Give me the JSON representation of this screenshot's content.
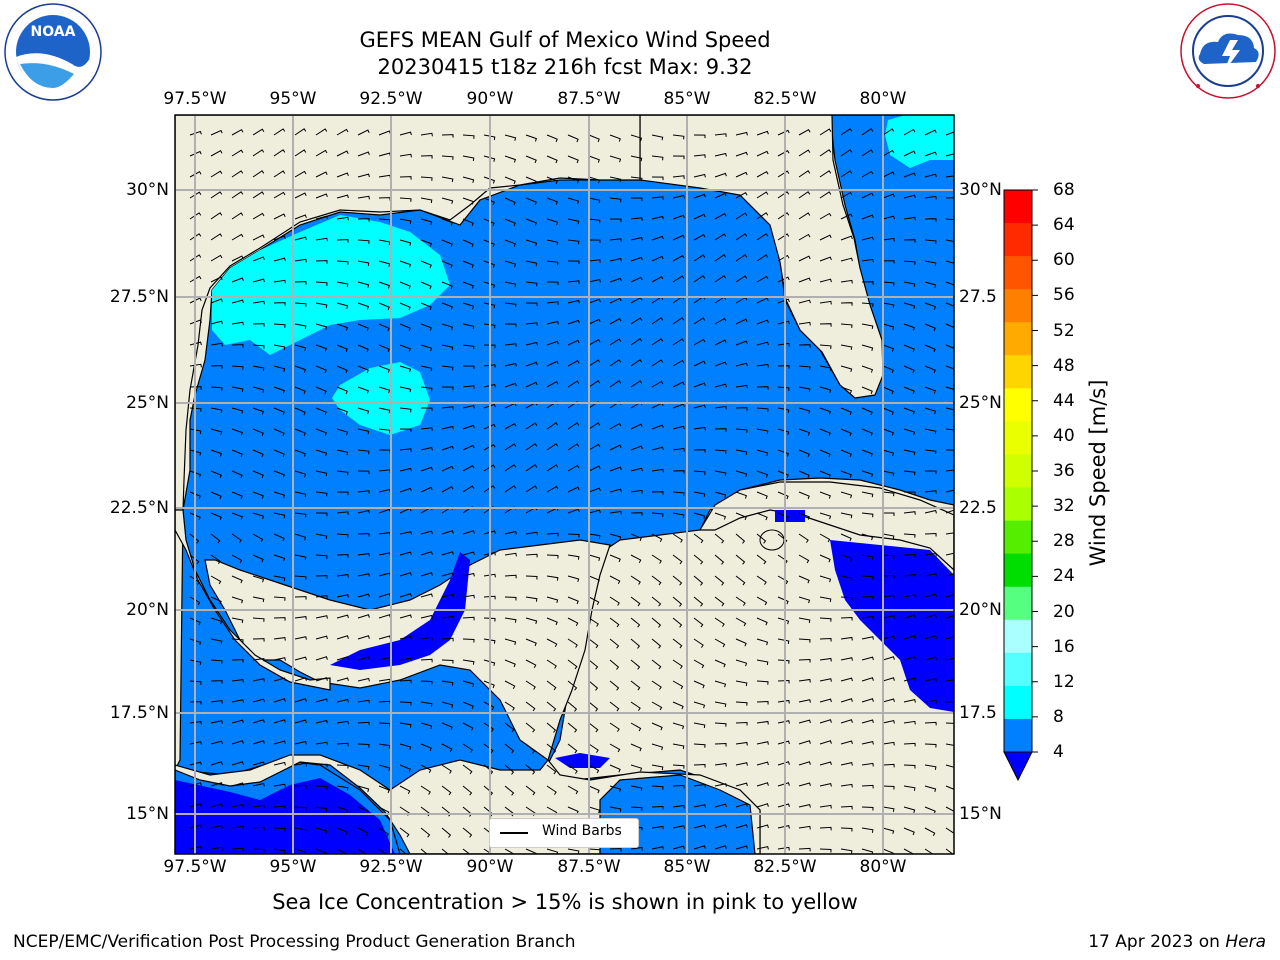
{
  "title": {
    "line1": "GEFS MEAN Gulf of Mexico Wind Speed",
    "line2": "20230415 t18z 216h fcst   Max: 9.32"
  },
  "logos": {
    "noaa": {
      "text": "NOAA",
      "ring_text": "NATIONAL OCEANIC AND ATMOSPHERIC ADMINISTRATION · U.S. DEPARTMENT OF COMMERCE"
    },
    "nws": {
      "ring_text": "NATIONAL WEATHER SERVICE"
    }
  },
  "map": {
    "lon_ticks": [
      "97.5°W",
      "95°W",
      "92.5°W",
      "90°W",
      "87.5°W",
      "85°W",
      "82.5°W",
      "80°W"
    ],
    "lat_ticks_left": [
      "30°N",
      "27.5°N",
      "25°N",
      "22.5°N",
      "20°N",
      "17.5°N",
      "15°N"
    ],
    "lat_ticks_right": [
      "30°N",
      "27.5",
      "25°N",
      "22.5",
      "20°N",
      "17.5",
      "15°N"
    ],
    "legend_label": "Wind Barbs",
    "colors": {
      "land": "#efeddc",
      "speed_4_8": "#0080ff",
      "speed_8_12": "#00ffff",
      "speed_below_4": "#0000ff",
      "grid": "#b0b0b0",
      "coast": "#000000"
    }
  },
  "colorbar": {
    "label": "Wind Speed [m/s]",
    "ticks": [
      "68",
      "64",
      "60",
      "56",
      "52",
      "48",
      "44",
      "40",
      "36",
      "32",
      "28",
      "24",
      "20",
      "16",
      "12",
      "8",
      "4"
    ],
    "colors": [
      "#ff0000",
      "#ff2a00",
      "#ff5500",
      "#ff8000",
      "#ffaa00",
      "#ffd500",
      "#ffff00",
      "#eaff00",
      "#d0ff00",
      "#aaff00",
      "#55ee00",
      "#00dd00",
      "#55ff80",
      "#aaffff",
      "#55ffff",
      "#00ffff",
      "#0080ff"
    ],
    "under_color": "#0000ff"
  },
  "note": "Sea Ice Concentration > 15% is shown in pink to yellow",
  "footer": {
    "left": "NCEP/EMC/Verification Post Processing Product Generation Branch",
    "date": "17 Apr 2023 on ",
    "machine": "Hera"
  }
}
